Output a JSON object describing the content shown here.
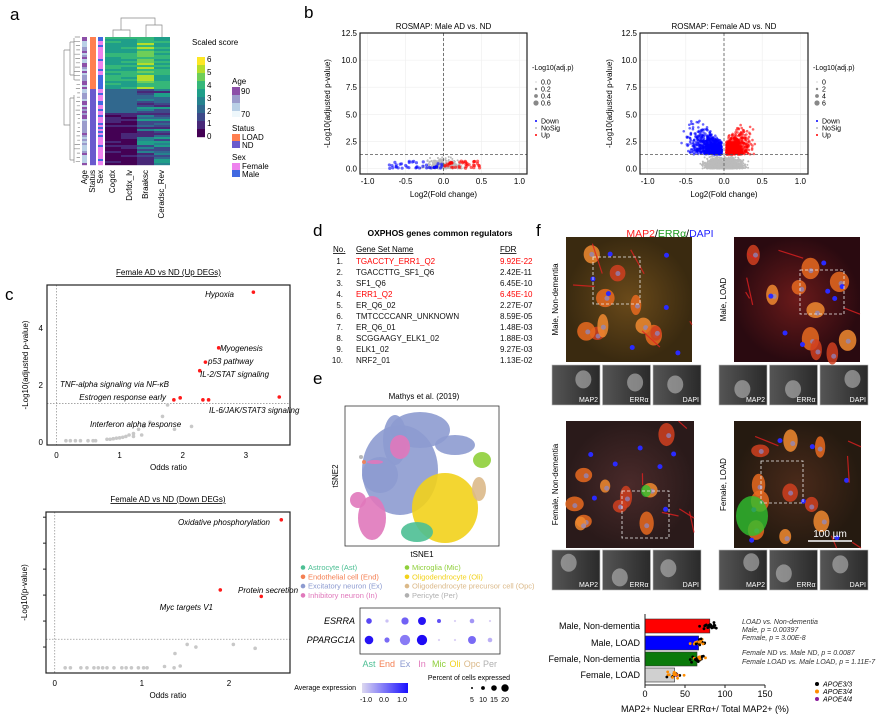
{
  "panels": {
    "a": "a",
    "b": "b",
    "c": "c",
    "d": "d",
    "e": "e",
    "f": "f"
  },
  "heatmap": {
    "columns": [
      "Age",
      "Status",
      "Sex",
      "Cogdx",
      "Dcfdx_lv",
      "Braaksc",
      "Ceradsc_Rev"
    ],
    "colorbar_title": "Scaled score",
    "colorbar_ticks": [
      "6",
      "5",
      "4",
      "3",
      "2",
      "1",
      "0"
    ],
    "colorbar_colors": [
      "#fde725",
      "#b5de2b",
      "#6ece58",
      "#35b779",
      "#1f9e89",
      "#26828e",
      "#31688e",
      "#3e4989",
      "#482878",
      "#440154"
    ],
    "age_legend": {
      "title": "Age",
      "ticks": [
        "90",
        "70"
      ],
      "colors": [
        "#8c4fa8",
        "#9b9ccc",
        "#b9d0e6",
        "#eef7fb"
      ]
    },
    "status_legend": {
      "title": "Status",
      "items": [
        {
          "label": "LOAD",
          "color": "#ff7f50"
        },
        {
          "label": "ND",
          "color": "#6a5acd"
        }
      ]
    },
    "sex_legend": {
      "title": "Sex",
      "items": [
        {
          "label": "Female",
          "color": "#ee82ee"
        },
        {
          "label": "Male",
          "color": "#4169e1"
        }
      ]
    }
  },
  "chart_data": [
    {
      "id": "volcano-male",
      "type": "scatter",
      "title": "ROSMAP: Male AD vs. ND",
      "xlabel": "Log2(Fold change)",
      "ylabel": "-Log10(adjusted p-value)",
      "xlim": [
        -1.1,
        1.1
      ],
      "ylim": [
        -0.5,
        12.5
      ],
      "xticks": [
        "-1.0",
        "-0.5",
        "0.0",
        "0.5",
        "1.0"
      ],
      "yticks": [
        "0.0",
        "2.5",
        "5.0",
        "7.5",
        "10.0",
        "12.5"
      ],
      "threshold_y": 1.3,
      "grid": true,
      "size_legend": {
        "title": "-Log10(adj.p)",
        "items": [
          "0.0",
          "0.2",
          "0.4",
          "0.6"
        ]
      },
      "color_legend": [
        {
          "label": "Down",
          "color": "#0000ff"
        },
        {
          "label": "NoSig",
          "color": "#bbbbbb"
        },
        {
          "label": "Up",
          "color": "#ff0000"
        }
      ],
      "max_y": 0.7,
      "x_range_down": [
        -0.72,
        0
      ],
      "x_range_up": [
        0,
        0.48
      ]
    },
    {
      "id": "volcano-female",
      "type": "scatter",
      "title": "ROSMAP: Female AD vs. ND",
      "xlabel": "Log2(Fold change)",
      "ylabel": "-Log10(adjusted p-value)",
      "xlim": [
        -1.1,
        1.1
      ],
      "ylim": [
        -0.5,
        12.5
      ],
      "xticks": [
        "-1.0",
        "-0.5",
        "0.0",
        "0.5",
        "1.0"
      ],
      "yticks": [
        "0.0",
        "2.5",
        "5.0",
        "7.5",
        "10.0",
        "12.5"
      ],
      "threshold_y": 1.3,
      "grid": true,
      "size_legend": {
        "title": "-Log10(adj.p)",
        "items": [
          "0",
          "2",
          "4",
          "6"
        ]
      },
      "color_legend": [
        {
          "label": "Down",
          "color": "#0000ff"
        },
        {
          "label": "NoSig",
          "color": "#bbbbbb"
        },
        {
          "label": "Up",
          "color": "#ff0000"
        }
      ],
      "max_y": 7.3,
      "x_range_down": [
        -0.78,
        0
      ],
      "x_range_up": [
        0,
        0.55
      ]
    },
    {
      "id": "enrich-up",
      "type": "scatter",
      "title": "Female AD vs ND (Up DEGs)",
      "xlabel": "Odds ratio",
      "ylabel": "-Log10(adjusted p-value)",
      "xlim": [
        -0.15,
        3.7
      ],
      "ylim": [
        -0.1,
        5.5
      ],
      "xticks": [
        "0",
        "1",
        "2",
        "3"
      ],
      "yticks": [
        "0",
        "2",
        "4"
      ],
      "threshold_y": 1.35,
      "significant": [
        {
          "x": 3.12,
          "y": 5.25,
          "label": "Hypoxia"
        },
        {
          "x": 2.57,
          "y": 3.3,
          "label": "Myogenesis"
        },
        {
          "x": 2.36,
          "y": 2.8,
          "label": "p53 pathway"
        },
        {
          "x": 2.27,
          "y": 2.5,
          "label": "IL-2/STAT signaling"
        },
        {
          "x": 1.96,
          "y": 1.55,
          "label": "TNF-alpha signaling via NF-κB"
        },
        {
          "x": 1.86,
          "y": 1.48,
          "label": "Estrogen response early"
        },
        {
          "x": 2.32,
          "y": 1.48,
          "label": ""
        },
        {
          "x": 2.41,
          "y": 1.48,
          "label": ""
        },
        {
          "x": 3.53,
          "y": 1.58,
          "label": "IL-6/JAK/STAT3 signaling"
        }
      ],
      "nonsignificant": [
        [
          0.15,
          0.05
        ],
        [
          0.22,
          0.05
        ],
        [
          0.3,
          0.05
        ],
        [
          0.38,
          0.05
        ],
        [
          0.5,
          0.05
        ],
        [
          0.58,
          0.05
        ],
        [
          0.62,
          0.05
        ],
        [
          0.8,
          0.1
        ],
        [
          0.85,
          0.1
        ],
        [
          0.9,
          0.12
        ],
        [
          0.95,
          0.14
        ],
        [
          1.0,
          0.15
        ],
        [
          1.05,
          0.17
        ],
        [
          1.1,
          0.2
        ],
        [
          1.15,
          0.25
        ],
        [
          1.22,
          0.3
        ],
        [
          1.22,
          0.2
        ],
        [
          1.3,
          0.45
        ],
        [
          1.35,
          0.25
        ],
        [
          1.38,
          0.55
        ],
        [
          1.48,
          0.7
        ],
        [
          1.68,
          0.9
        ],
        [
          1.76,
          1.3
        ],
        [
          1.87,
          0.45
        ],
        [
          2.14,
          0.55
        ]
      ],
      "annotation_extra": "Interferon alpha response"
    },
    {
      "id": "enrich-down",
      "type": "scatter",
      "title": "Female AD vs ND (Down DEGs)",
      "xlabel": "Odds ratio",
      "ylabel": "-Log10(p-value)",
      "xlim": [
        -0.1,
        2.7
      ],
      "ylim": [
        0,
        6.2
      ],
      "xticks": [
        "0",
        "1",
        "2"
      ],
      "yticks": [],
      "threshold_y": 1.3,
      "significant": [
        {
          "x": 2.6,
          "y": 5.9,
          "label": "Oxidative phosphorylation"
        },
        {
          "x": 1.9,
          "y": 3.2,
          "label": "Myc targets V1"
        },
        {
          "x": 2.37,
          "y": 2.95,
          "label": "Protein secretion"
        }
      ],
      "nonsignificant": [
        [
          0.12,
          0.2
        ],
        [
          0.18,
          0.2
        ],
        [
          0.3,
          0.2
        ],
        [
          0.37,
          0.2
        ],
        [
          0.45,
          0.2
        ],
        [
          0.5,
          0.2
        ],
        [
          0.55,
          0.2
        ],
        [
          0.6,
          0.2
        ],
        [
          0.68,
          0.2
        ],
        [
          0.77,
          0.2
        ],
        [
          0.82,
          0.2
        ],
        [
          0.88,
          0.2
        ],
        [
          0.96,
          0.2
        ],
        [
          1.02,
          0.2
        ],
        [
          1.06,
          0.2
        ],
        [
          1.26,
          0.25
        ],
        [
          1.37,
          0.2
        ],
        [
          1.38,
          0.75
        ],
        [
          1.44,
          0.27
        ],
        [
          1.52,
          1.1
        ],
        [
          1.62,
          1.0
        ],
        [
          2.05,
          1.1
        ],
        [
          2.3,
          0.95
        ]
      ]
    },
    {
      "id": "dotplot",
      "type": "scatter",
      "genes": [
        "ESRRA",
        "PPARGC1A"
      ],
      "cell_types": [
        "Ast",
        "End",
        "Ex",
        "In",
        "Mic",
        "Oli",
        "Opc",
        "Per"
      ],
      "cell_type_colors": [
        "#4dbf94",
        "#f47f52",
        "#8d9bd0",
        "#e078bb",
        "#8fcf3a",
        "#f2d21b",
        "#dbb989",
        "#b0b0b0"
      ],
      "avg_expression": [
        [
          0.6,
          -0.8,
          0.3,
          1.2,
          0.5,
          -1.0,
          -0.3,
          -1.0
        ],
        [
          1.2,
          0.2,
          0.0,
          1.3,
          -1.0,
          -1.0,
          0.2,
          -0.6
        ]
      ],
      "percent_expressed": [
        [
          6,
          2,
          10,
          12,
          3,
          1,
          4,
          1
        ],
        [
          14,
          5,
          20,
          20,
          1,
          1,
          12,
          4
        ]
      ],
      "expression_legend": {
        "title": "Average expression",
        "ticks": [
          "-1.0",
          "0.0",
          "1.0"
        ]
      },
      "size_legend": {
        "title": "Percent of cells expressed",
        "ticks": [
          "5",
          "10",
          "15",
          "20"
        ]
      }
    },
    {
      "id": "barplot",
      "type": "bar",
      "orientation": "horizontal",
      "categories": [
        "Male, Non-dementia",
        "Male, LOAD",
        "Female, Non-dementia",
        "Female, LOAD"
      ],
      "values": [
        81,
        67,
        65,
        37
      ],
      "colors": [
        "#ff0000",
        "#0000ff",
        "#0a7a0a",
        "#d0d0d0"
      ],
      "xlim": [
        0,
        150
      ],
      "xticks": [
        "0",
        "50",
        "100",
        "150"
      ],
      "xlabel": "MAP2+ Nuclear ERRα+/ Total MAP2+ (%)",
      "legend": [
        {
          "label": "APOE3/3",
          "color": "#000000"
        },
        {
          "label": "APOE3/4",
          "color": "#ff8c00"
        },
        {
          "label": "APOE4/4",
          "color": "#8b1a9b"
        }
      ]
    }
  ],
  "tsne": {
    "title": "Mathys et al. (2019)",
    "xlabel": "tSNE1",
    "ylabel": "tSNE2",
    "legend": [
      {
        "label": "Astrocyte (Ast)",
        "color": "#4dbf94"
      },
      {
        "label": "Microglia (Mic)",
        "color": "#8fcf3a"
      },
      {
        "label": "Endothelial cell (End)",
        "color": "#f47f52"
      },
      {
        "label": "Oligodendrocyte (Oli)",
        "color": "#f2d21b"
      },
      {
        "label": "Excitatory neuron (Ex)",
        "color": "#8d9bd0"
      },
      {
        "label": "Oligodendrocyte precursor cell (Opc)",
        "color": "#dbb989"
      },
      {
        "label": "Inhibitory neuron (In)",
        "color": "#e078bb"
      },
      {
        "label": "Pericyte (Per)",
        "color": "#b0b0b0"
      }
    ]
  },
  "table_d": {
    "title": "OXPHOS genes common regulators",
    "headers": [
      "No.",
      "Gene Set Name",
      "FDR"
    ],
    "rows": [
      {
        "no": "1.",
        "name": "TGACCTY_ERR1_Q2",
        "fdr": "9.92E-22",
        "highlight": true
      },
      {
        "no": "2.",
        "name": "TGACCTTG_SF1_Q6",
        "fdr": "2.42E-11",
        "highlight": false
      },
      {
        "no": "3.",
        "name": "SF1_Q6",
        "fdr": "6.45E-10",
        "highlight": false
      },
      {
        "no": "4.",
        "name": "ERR1_Q2",
        "fdr": "6.45E-10",
        "highlight": true
      },
      {
        "no": "5.",
        "name": "ER_Q6_02",
        "fdr": "2.27E-07",
        "highlight": false
      },
      {
        "no": "6.",
        "name": "TMTCCCCANR_UNKNOWN",
        "fdr": "8.59E-05",
        "highlight": false
      },
      {
        "no": "7.",
        "name": "ER_Q6_01",
        "fdr": "1.48E-03",
        "highlight": false
      },
      {
        "no": "8.",
        "name": "SCGGAAGY_ELK1_02",
        "fdr": "1.88E-03",
        "highlight": false
      },
      {
        "no": "9.",
        "name": "ELK1_02",
        "fdr": "9.27E-03",
        "highlight": false
      },
      {
        "no": "10.",
        "name": "NRF2_01",
        "fdr": "1.13E-02",
        "highlight": false
      }
    ],
    "highlight_color": "#ff0000"
  },
  "panel_f": {
    "title_parts": [
      "MAP2",
      "/",
      "ERRα",
      "/",
      "DAPI"
    ],
    "title_colors": [
      "#ff2020",
      "#000000",
      "#1a9a1a",
      "#000000",
      "#2020ff"
    ],
    "images": [
      {
        "label": "Male, Non-dementia"
      },
      {
        "label": "Male, LOAD"
      },
      {
        "label": "Female, Non-dementia"
      },
      {
        "label": "Female, LOAD"
      }
    ],
    "channels": [
      "MAP2",
      "ERRα",
      "DAPI"
    ],
    "scale_bar": "100 µm",
    "stats": [
      "LOAD vs. Non-dementia",
      "Male, p = 0.00397",
      "Female, p = 3.00E-8",
      "Female ND vs. Male ND, p = 0.0087",
      "Female LOAD vs. Male LOAD, p = 1.11E-7"
    ]
  }
}
